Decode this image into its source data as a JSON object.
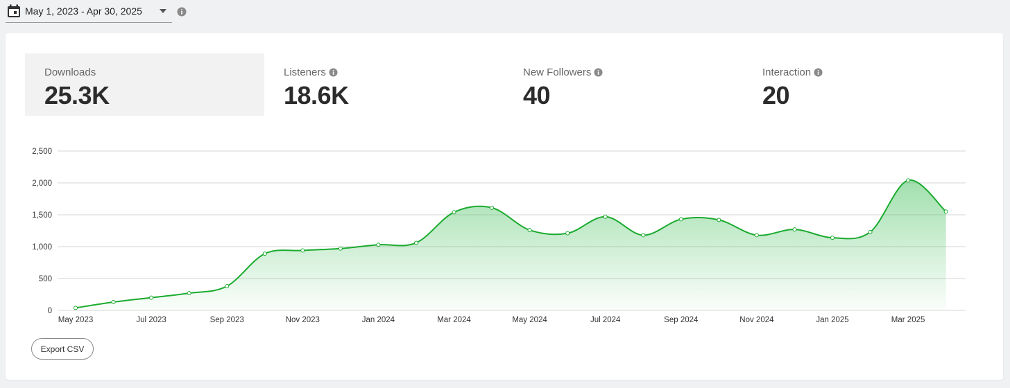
{
  "date_range": {
    "label": "May 1, 2023 - Apr 30, 2025"
  },
  "stats": [
    {
      "label": "Downloads",
      "value": "25.3K"
    },
    {
      "label": "Listeners",
      "value": "18.6K"
    },
    {
      "label": "New Followers",
      "value": "40"
    },
    {
      "label": "Interaction",
      "value": "20"
    }
  ],
  "colors": {
    "line": "#1aaa2e",
    "fill": "#2fb84a",
    "grid": "#d6d6d6"
  },
  "chart_data": {
    "type": "area",
    "title": "Downloads",
    "xlabel": "",
    "ylabel": "",
    "ylim": [
      0,
      2500
    ],
    "yticks": [
      0,
      500,
      1000,
      1500,
      2000,
      2500
    ],
    "ytick_labels": [
      "0",
      "500",
      "1,000",
      "1,500",
      "2,000",
      "2,500"
    ],
    "xtick_labels": [
      "May 2023",
      "Jul 2023",
      "Sep 2023",
      "Nov 2023",
      "Jan 2024",
      "Mar 2024",
      "May 2024",
      "Jul 2024",
      "Sep 2024",
      "Nov 2024",
      "Jan 2025",
      "Mar 2025"
    ],
    "series": [
      {
        "name": "Downloads",
        "x": [
          "May 2023",
          "Jun 2023",
          "Jul 2023",
          "Aug 2023",
          "Sep 2023",
          "Oct 2023",
          "Nov 2023",
          "Dec 2023",
          "Jan 2024",
          "Feb 2024",
          "Mar 2024",
          "Apr 2024",
          "May 2024",
          "Jun 2024",
          "Jul 2024",
          "Aug 2024",
          "Sep 2024",
          "Oct 2024",
          "Nov 2024",
          "Dec 2024",
          "Jan 2025",
          "Feb 2025",
          "Mar 2025",
          "Apr 2025"
        ],
        "values": [
          40,
          130,
          200,
          270,
          380,
          890,
          940,
          970,
          1030,
          1060,
          1540,
          1610,
          1260,
          1210,
          1470,
          1180,
          1430,
          1420,
          1180,
          1270,
          1140,
          1230,
          2040,
          1550
        ]
      }
    ]
  },
  "export": {
    "label": "Export CSV"
  }
}
